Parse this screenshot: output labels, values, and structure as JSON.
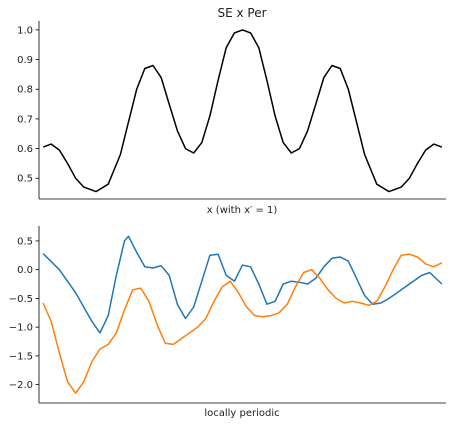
{
  "chart_data": [
    {
      "type": "line",
      "title": "SE x Per",
      "xlabel": "x (with x′ = 1)",
      "ylabel": "",
      "xlim": [
        -5,
        5
      ],
      "ylim": [
        0.43,
        1.03
      ],
      "yticks": [
        0.5,
        0.6,
        0.7,
        0.8,
        0.9,
        1.0
      ],
      "ytick_labels": [
        "0.5",
        "0.6",
        "0.7",
        "0.8",
        "0.9",
        "1.0"
      ],
      "xticks_visible": false,
      "grid": false,
      "spines": [
        "left",
        "bottom"
      ],
      "series": [
        {
          "color": "#000000",
          "x": [
            -4.9,
            -4.7,
            -4.5,
            -4.3,
            -4.1,
            -3.9,
            -3.6,
            -3.3,
            -3.0,
            -2.8,
            -2.6,
            -2.4,
            -2.2,
            -2.0,
            -1.8,
            -1.6,
            -1.4,
            -1.2,
            -1.0,
            -0.8,
            -0.6,
            -0.4,
            -0.2,
            0.0,
            0.2,
            0.4,
            0.6,
            0.8,
            1.0,
            1.2,
            1.4,
            1.6,
            1.8,
            2.0,
            2.2,
            2.4,
            2.6,
            2.8,
            3.0,
            3.3,
            3.6,
            3.9,
            4.1,
            4.3,
            4.5,
            4.7,
            4.9
          ],
          "y": [
            0.605,
            0.615,
            0.595,
            0.55,
            0.5,
            0.47,
            0.455,
            0.48,
            0.58,
            0.69,
            0.8,
            0.87,
            0.88,
            0.84,
            0.75,
            0.66,
            0.6,
            0.585,
            0.62,
            0.71,
            0.83,
            0.94,
            0.99,
            1.0,
            0.99,
            0.94,
            0.83,
            0.71,
            0.62,
            0.585,
            0.6,
            0.66,
            0.75,
            0.84,
            0.88,
            0.87,
            0.8,
            0.69,
            0.58,
            0.48,
            0.455,
            0.47,
            0.5,
            0.55,
            0.595,
            0.615,
            0.605
          ]
        }
      ]
    },
    {
      "type": "line",
      "title": "",
      "xlabel": "locally periodic",
      "ylabel": "",
      "xlim": [
        -5,
        5
      ],
      "ylim": [
        -2.32,
        0.76
      ],
      "yticks": [
        0.5,
        0.0,
        -0.5,
        -1.0,
        -1.5,
        -2.0
      ],
      "ytick_labels": [
        "0.5",
        "0.0",
        "−0.5",
        "−1.0",
        "−1.5",
        "−2.0"
      ],
      "xticks_visible": false,
      "grid": false,
      "spines": [
        "left",
        "bottom"
      ],
      "series": [
        {
          "color": "#1f77b4",
          "x": [
            -4.9,
            -4.5,
            -4.1,
            -3.7,
            -3.5,
            -3.3,
            -3.1,
            -2.9,
            -2.8,
            -2.6,
            -2.4,
            -2.2,
            -2.0,
            -1.8,
            -1.6,
            -1.4,
            -1.2,
            -1.0,
            -0.8,
            -0.6,
            -0.4,
            -0.2,
            0.0,
            0.2,
            0.4,
            0.6,
            0.8,
            1.0,
            1.2,
            1.4,
            1.6,
            1.8,
            2.0,
            2.2,
            2.4,
            2.6,
            2.8,
            3.0,
            3.2,
            3.4,
            3.6,
            3.8,
            4.0,
            4.2,
            4.4,
            4.6,
            4.9
          ],
          "y": [
            0.28,
            0.0,
            -0.4,
            -0.9,
            -1.1,
            -0.8,
            -0.1,
            0.5,
            0.58,
            0.3,
            0.05,
            0.03,
            0.07,
            -0.1,
            -0.6,
            -0.85,
            -0.65,
            -0.2,
            0.25,
            0.27,
            -0.1,
            -0.2,
            0.08,
            0.05,
            -0.25,
            -0.6,
            -0.55,
            -0.25,
            -0.2,
            -0.22,
            -0.25,
            -0.15,
            0.05,
            0.2,
            0.22,
            0.15,
            -0.15,
            -0.45,
            -0.6,
            -0.58,
            -0.5,
            -0.4,
            -0.3,
            -0.2,
            -0.1,
            -0.05,
            -0.25
          ]
        },
        {
          "color": "#ff7f0e",
          "x": [
            -4.9,
            -4.7,
            -4.5,
            -4.3,
            -4.1,
            -3.9,
            -3.7,
            -3.5,
            -3.3,
            -3.1,
            -2.9,
            -2.7,
            -2.5,
            -2.3,
            -2.1,
            -1.9,
            -1.7,
            -1.5,
            -1.3,
            -1.1,
            -0.9,
            -0.7,
            -0.5,
            -0.3,
            -0.1,
            0.1,
            0.3,
            0.5,
            0.7,
            0.9,
            1.1,
            1.3,
            1.5,
            1.7,
            1.9,
            2.1,
            2.3,
            2.5,
            2.7,
            2.9,
            3.1,
            3.3,
            3.5,
            3.7,
            3.9,
            4.1,
            4.3,
            4.5,
            4.7,
            4.9
          ],
          "y": [
            -0.58,
            -0.9,
            -1.45,
            -1.95,
            -2.15,
            -1.95,
            -1.6,
            -1.38,
            -1.3,
            -1.1,
            -0.7,
            -0.35,
            -0.32,
            -0.55,
            -0.95,
            -1.28,
            -1.3,
            -1.2,
            -1.1,
            -1.0,
            -0.85,
            -0.55,
            -0.3,
            -0.2,
            -0.4,
            -0.65,
            -0.8,
            -0.82,
            -0.8,
            -0.75,
            -0.6,
            -0.3,
            -0.05,
            0.0,
            -0.15,
            -0.35,
            -0.5,
            -0.58,
            -0.55,
            -0.58,
            -0.62,
            -0.55,
            -0.3,
            0.0,
            0.25,
            0.27,
            0.22,
            0.1,
            0.05,
            0.12
          ]
        }
      ]
    }
  ]
}
